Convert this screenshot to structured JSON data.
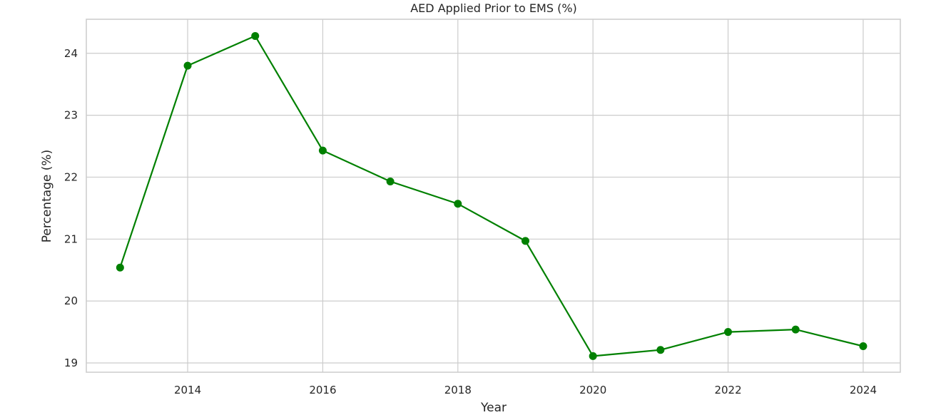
{
  "chart_data": {
    "type": "line",
    "title": "AED Applied Prior to EMS (%)",
    "xlabel": "Year",
    "ylabel": "Percentage (%)",
    "xlim": [
      2012.5,
      2024.55
    ],
    "ylim": [
      18.85,
      24.55
    ],
    "xticks": [
      2014,
      2016,
      2018,
      2020,
      2022,
      2024
    ],
    "yticks": [
      19,
      20,
      21,
      22,
      23,
      24
    ],
    "grid": true,
    "color": "#008000",
    "series": [
      {
        "name": "AED Applied Prior to EMS (%)",
        "x": [
          2013,
          2014,
          2015,
          2016,
          2017,
          2018,
          2019,
          2020,
          2021,
          2022,
          2023,
          2024
        ],
        "values": [
          20.54,
          23.8,
          24.28,
          22.43,
          21.93,
          21.57,
          20.97,
          19.11,
          19.21,
          19.5,
          19.54,
          19.27
        ]
      }
    ]
  }
}
